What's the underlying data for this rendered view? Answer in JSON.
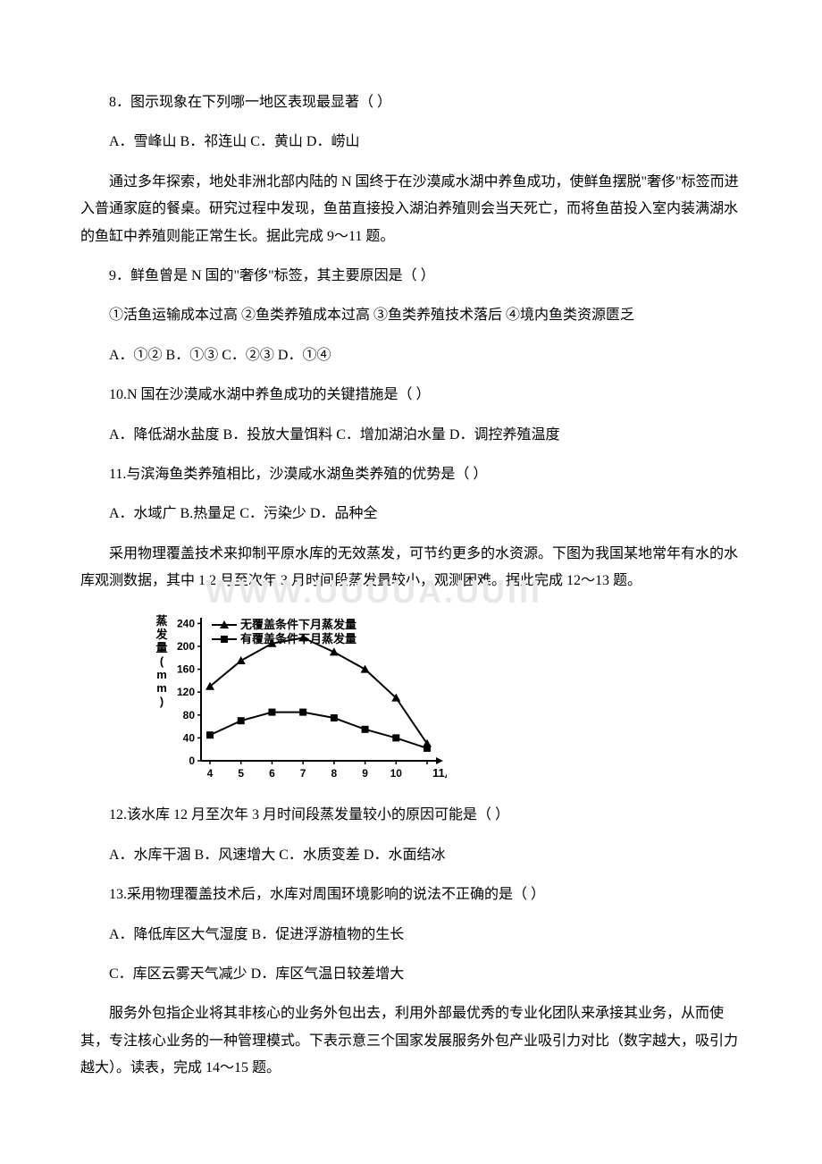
{
  "q8": {
    "text": "8．图示现象在下列哪一地区表现最显著（ ）",
    "opts": "A．雪峰山 B．祁连山 C．黄山 D．崂山"
  },
  "passage1": "通过多年探索，地处非洲北部内陆的 N 国终于在沙漠咸水湖中养鱼成功，使鲜鱼摆脱\"奢侈\"标签而进入普通家庭的餐桌。研究过程中发现，鱼苗直接投入湖泊养殖则会当天死亡，而将鱼苗投入室内装满湖水的鱼缸中养殖则能正常生长。据此完成 9～11 题。",
  "q9": {
    "text": "9．鲜鱼曾是 N 国的\"奢侈\"标签，其主要原因是（ ）",
    "line2": "①活鱼运输成本过高 ②鱼类养殖成本过高 ③鱼类养殖技术落后 ④境内鱼类资源匮乏",
    "opts": "A．①② B．①③ C．②③ D．①④"
  },
  "q10": {
    "text": "10.N 国在沙漠咸水湖中养鱼成功的关键措施是（ ）",
    "opts": "A．降低湖水盐度   B．投放大量饵料 C．增加湖泊水量  D．调控养殖温度"
  },
  "q11": {
    "text": "11.与滨海鱼类养殖相比，沙漠咸水湖鱼类养殖的优势是（ ）",
    "opts": "A．水域广 B.热量足 C．污染少 D．品种全"
  },
  "passage2": "采用物理覆盖技术来抑制平原水库的无效蒸发，可节约更多的水资源。下图为我国某地常年有水的水库观测数据，其中 1 2 月至次年 3 月时间段蒸发量较小，观测困难。据此完成 12～13 题。",
  "watermark": "WWW.UUUUA.UUIII",
  "chart": {
    "type": "line",
    "ylabel": "蒸发量(mm)",
    "xlabel": "11月份",
    "yticks": [
      0,
      40,
      80,
      120,
      160,
      200,
      240
    ],
    "xticks": [
      "4",
      "5",
      "6",
      "7",
      "8",
      "9",
      "10",
      ""
    ],
    "series1": {
      "name": "无覆盖条件下月蒸发量",
      "marker": "triangle",
      "color": "#000000",
      "values": [
        130,
        175,
        205,
        215,
        190,
        160,
        110,
        30
      ]
    },
    "series2": {
      "name": "有覆盖条件下月蒸发量",
      "marker": "square",
      "color": "#000000",
      "values": [
        45,
        70,
        85,
        85,
        75,
        55,
        40,
        22
      ]
    },
    "ylim": [
      0,
      250
    ],
    "line_width": 2,
    "background_color": "#ffffff"
  },
  "q12": {
    "text": "12.该水库 12 月至次年 3 月时间段蒸发量较小的原因可能是（ ）",
    "opts": "A．水库干涸 B．风速增大   C．水质变差   D．水面结冰"
  },
  "q13": {
    "text": "13.采用物理覆盖技术后，水库对周围环境影响的说法不正确的是（ ）",
    "opts1": "A．降低库区大气湿度   B．促进浮游植物的生长",
    "opts2": "C．库区云雾天气减少 D．库区气温日较差增大"
  },
  "passage3": "服务外包指企业将其非核心的业务外包出去，利用外部最优秀的专业化团队来承接其业务，从而使其，专注核心业务的一种管理模式。下表示意三个国家发展服务外包产业吸引力对比（数字越大，吸引力越大）。读表，完成 14～15 题。"
}
